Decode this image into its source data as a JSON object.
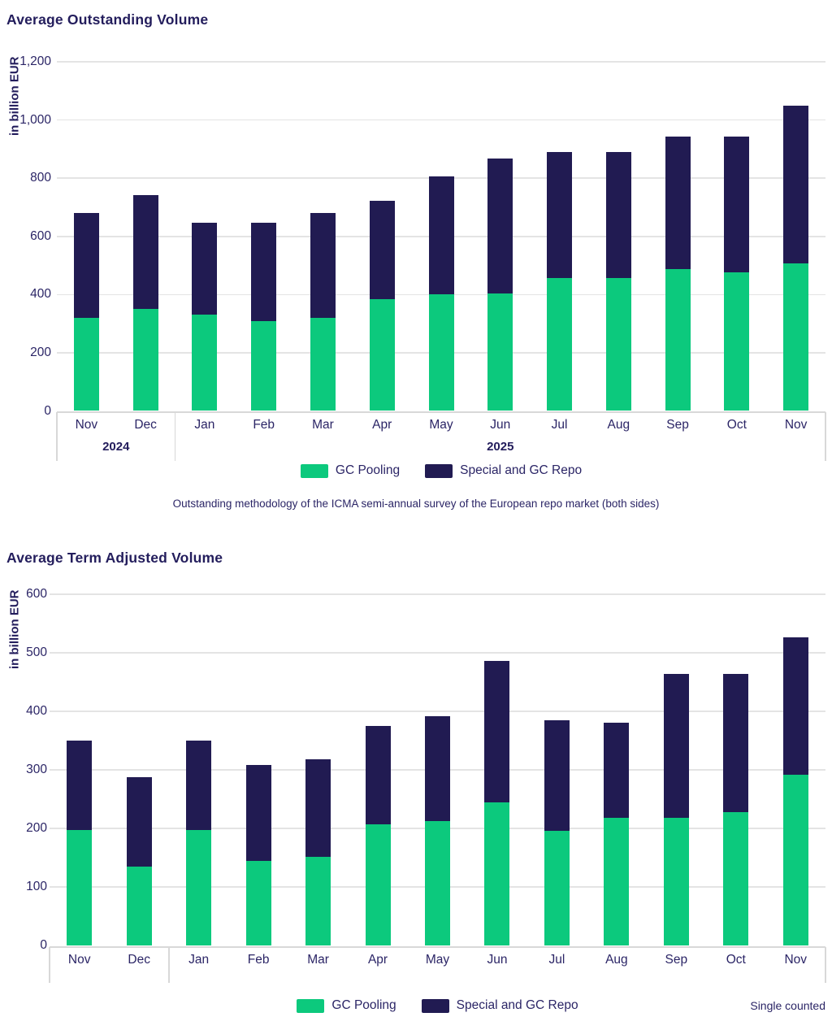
{
  "colors": {
    "gc_pooling": "#0cc97d",
    "special_gc_repo": "#211b52",
    "text": "#2b2566",
    "gridline": "#e4e4e4",
    "axis": "#d8d8d8"
  },
  "chart_data": [
    {
      "type": "bar",
      "stacked": true,
      "title": "Average Outstanding Volume",
      "ylabel": "in billion EUR",
      "categories": [
        "Nov",
        "Dec",
        "Jan",
        "Feb",
        "Mar",
        "Apr",
        "May",
        "Jun",
        "Jul",
        "Aug",
        "Sep",
        "Oct",
        "Nov"
      ],
      "year_groups": [
        {
          "label": "2024",
          "from": 0,
          "to": 1
        },
        {
          "label": "2025",
          "from": 2,
          "to": 12
        }
      ],
      "series": [
        {
          "name": "GC Pooling",
          "values": [
            320,
            350,
            330,
            310,
            320,
            385,
            402,
            403,
            456,
            456,
            487,
            475,
            508
          ]
        },
        {
          "name": "Special and GC Repo",
          "values": [
            360,
            393,
            318,
            338,
            360,
            337,
            404,
            465,
            433,
            433,
            456,
            468,
            541
          ]
        }
      ],
      "totals": [
        680,
        743,
        648,
        648,
        680,
        722,
        806,
        868,
        889,
        889,
        943,
        943,
        1049
      ],
      "ylim": [
        0,
        1200
      ],
      "ytick_step": 200,
      "grid": true,
      "legend_position": "bottom-center",
      "footnote": "Outstanding methodology of the ICMA semi-annual survey of the European repo market (both sides)"
    },
    {
      "type": "bar",
      "stacked": true,
      "title": "Average Term Adjusted Volume",
      "ylabel": "in billion EUR",
      "categories": [
        "Nov",
        "Dec",
        "Jan",
        "Feb",
        "Mar",
        "Apr",
        "May",
        "Jun",
        "Jul",
        "Aug",
        "Sep",
        "Oct",
        "Nov"
      ],
      "year_groups": [
        {
          "label": "",
          "from": 0,
          "to": 1
        },
        {
          "label": "",
          "from": 2,
          "to": 12
        }
      ],
      "series": [
        {
          "name": "GC Pooling",
          "values": [
            197,
            135,
            197,
            145,
            151,
            207,
            213,
            244,
            196,
            218,
            218,
            228,
            292
          ]
        },
        {
          "name": "Special and GC Repo",
          "values": [
            153,
            152,
            153,
            163,
            167,
            168,
            178,
            242,
            189,
            162,
            246,
            236,
            235
          ]
        }
      ],
      "totals": [
        350,
        287,
        350,
        308,
        318,
        375,
        391,
        486,
        385,
        380,
        464,
        464,
        527
      ],
      "ylim": [
        0,
        600
      ],
      "ytick_step": 100,
      "grid": true,
      "legend_position": "bottom-center",
      "note": "Single counted"
    }
  ]
}
